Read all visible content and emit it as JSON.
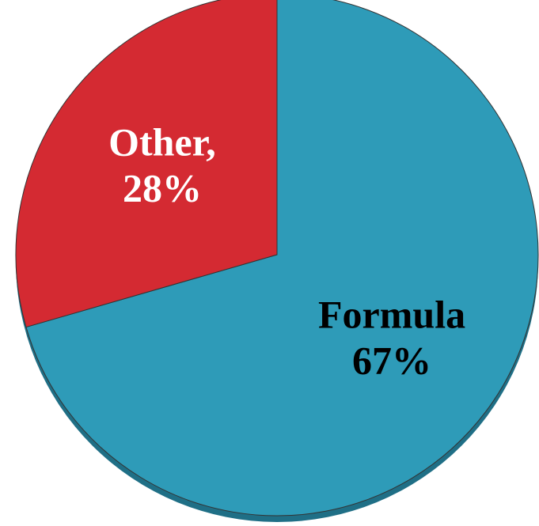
{
  "chart_data": {
    "type": "pie",
    "categories": [
      "Formula",
      "Other,"
    ],
    "values": [
      67,
      28
    ],
    "value_labels": [
      "67%",
      "28%"
    ],
    "colors": [
      "#2e9bb8",
      "#d42a32"
    ],
    "label_colors": [
      "#000000",
      "#ffffff"
    ]
  }
}
